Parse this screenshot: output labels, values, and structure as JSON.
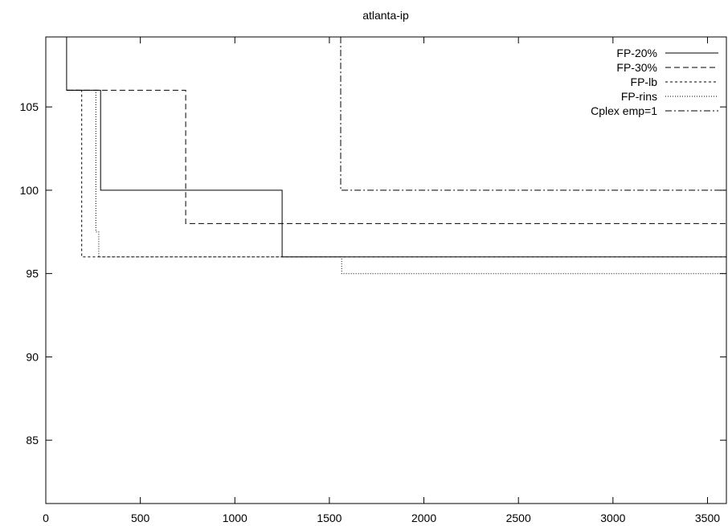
{
  "chart_data": {
    "type": "line",
    "title": "atlanta-ip",
    "xlabel": "",
    "ylabel": "",
    "xlim": [
      0,
      3600
    ],
    "ylim": [
      81.2,
      109.2
    ],
    "x_ticks": [
      0,
      500,
      1000,
      1500,
      2000,
      2500,
      3000,
      3500
    ],
    "x_tick_labels": [
      "0",
      "500",
      "1000",
      "1500",
      "2000",
      "2500",
      "3000",
      "3500"
    ],
    "y_ticks": [
      85,
      90,
      95,
      100,
      105
    ],
    "y_tick_labels": [
      "85",
      "90",
      "95",
      "100",
      "105"
    ],
    "grid": false,
    "legend_position": "top-right",
    "step": true,
    "series": [
      {
        "name": "FP-20%",
        "dash": "solid",
        "points": [
          [
            110,
            109.2
          ],
          [
            110,
            106
          ],
          [
            290,
            106
          ],
          [
            290,
            100
          ],
          [
            1250,
            100
          ],
          [
            1250,
            96
          ],
          [
            3600,
            96
          ]
        ]
      },
      {
        "name": "FP-30%",
        "dash": "dashed",
        "points": [
          [
            110,
            106
          ],
          [
            740,
            106
          ],
          [
            740,
            98
          ],
          [
            3600,
            98
          ]
        ]
      },
      {
        "name": "FP-lb",
        "dash": "short-dashed",
        "points": [
          [
            110,
            106
          ],
          [
            190,
            106
          ],
          [
            190,
            96
          ],
          [
            3600,
            96
          ]
        ]
      },
      {
        "name": "FP-rins",
        "dash": "dotted",
        "points": [
          [
            110,
            106
          ],
          [
            265,
            106
          ],
          [
            265,
            97.5
          ],
          [
            280,
            97.5
          ],
          [
            280,
            96
          ],
          [
            1565,
            96
          ],
          [
            1565,
            95
          ],
          [
            3600,
            95
          ]
        ]
      },
      {
        "name": "Cplex emp=1",
        "dash": "dash-dot",
        "points": [
          [
            1560,
            109.2
          ],
          [
            1560,
            100
          ],
          [
            3600,
            100
          ]
        ]
      }
    ]
  }
}
